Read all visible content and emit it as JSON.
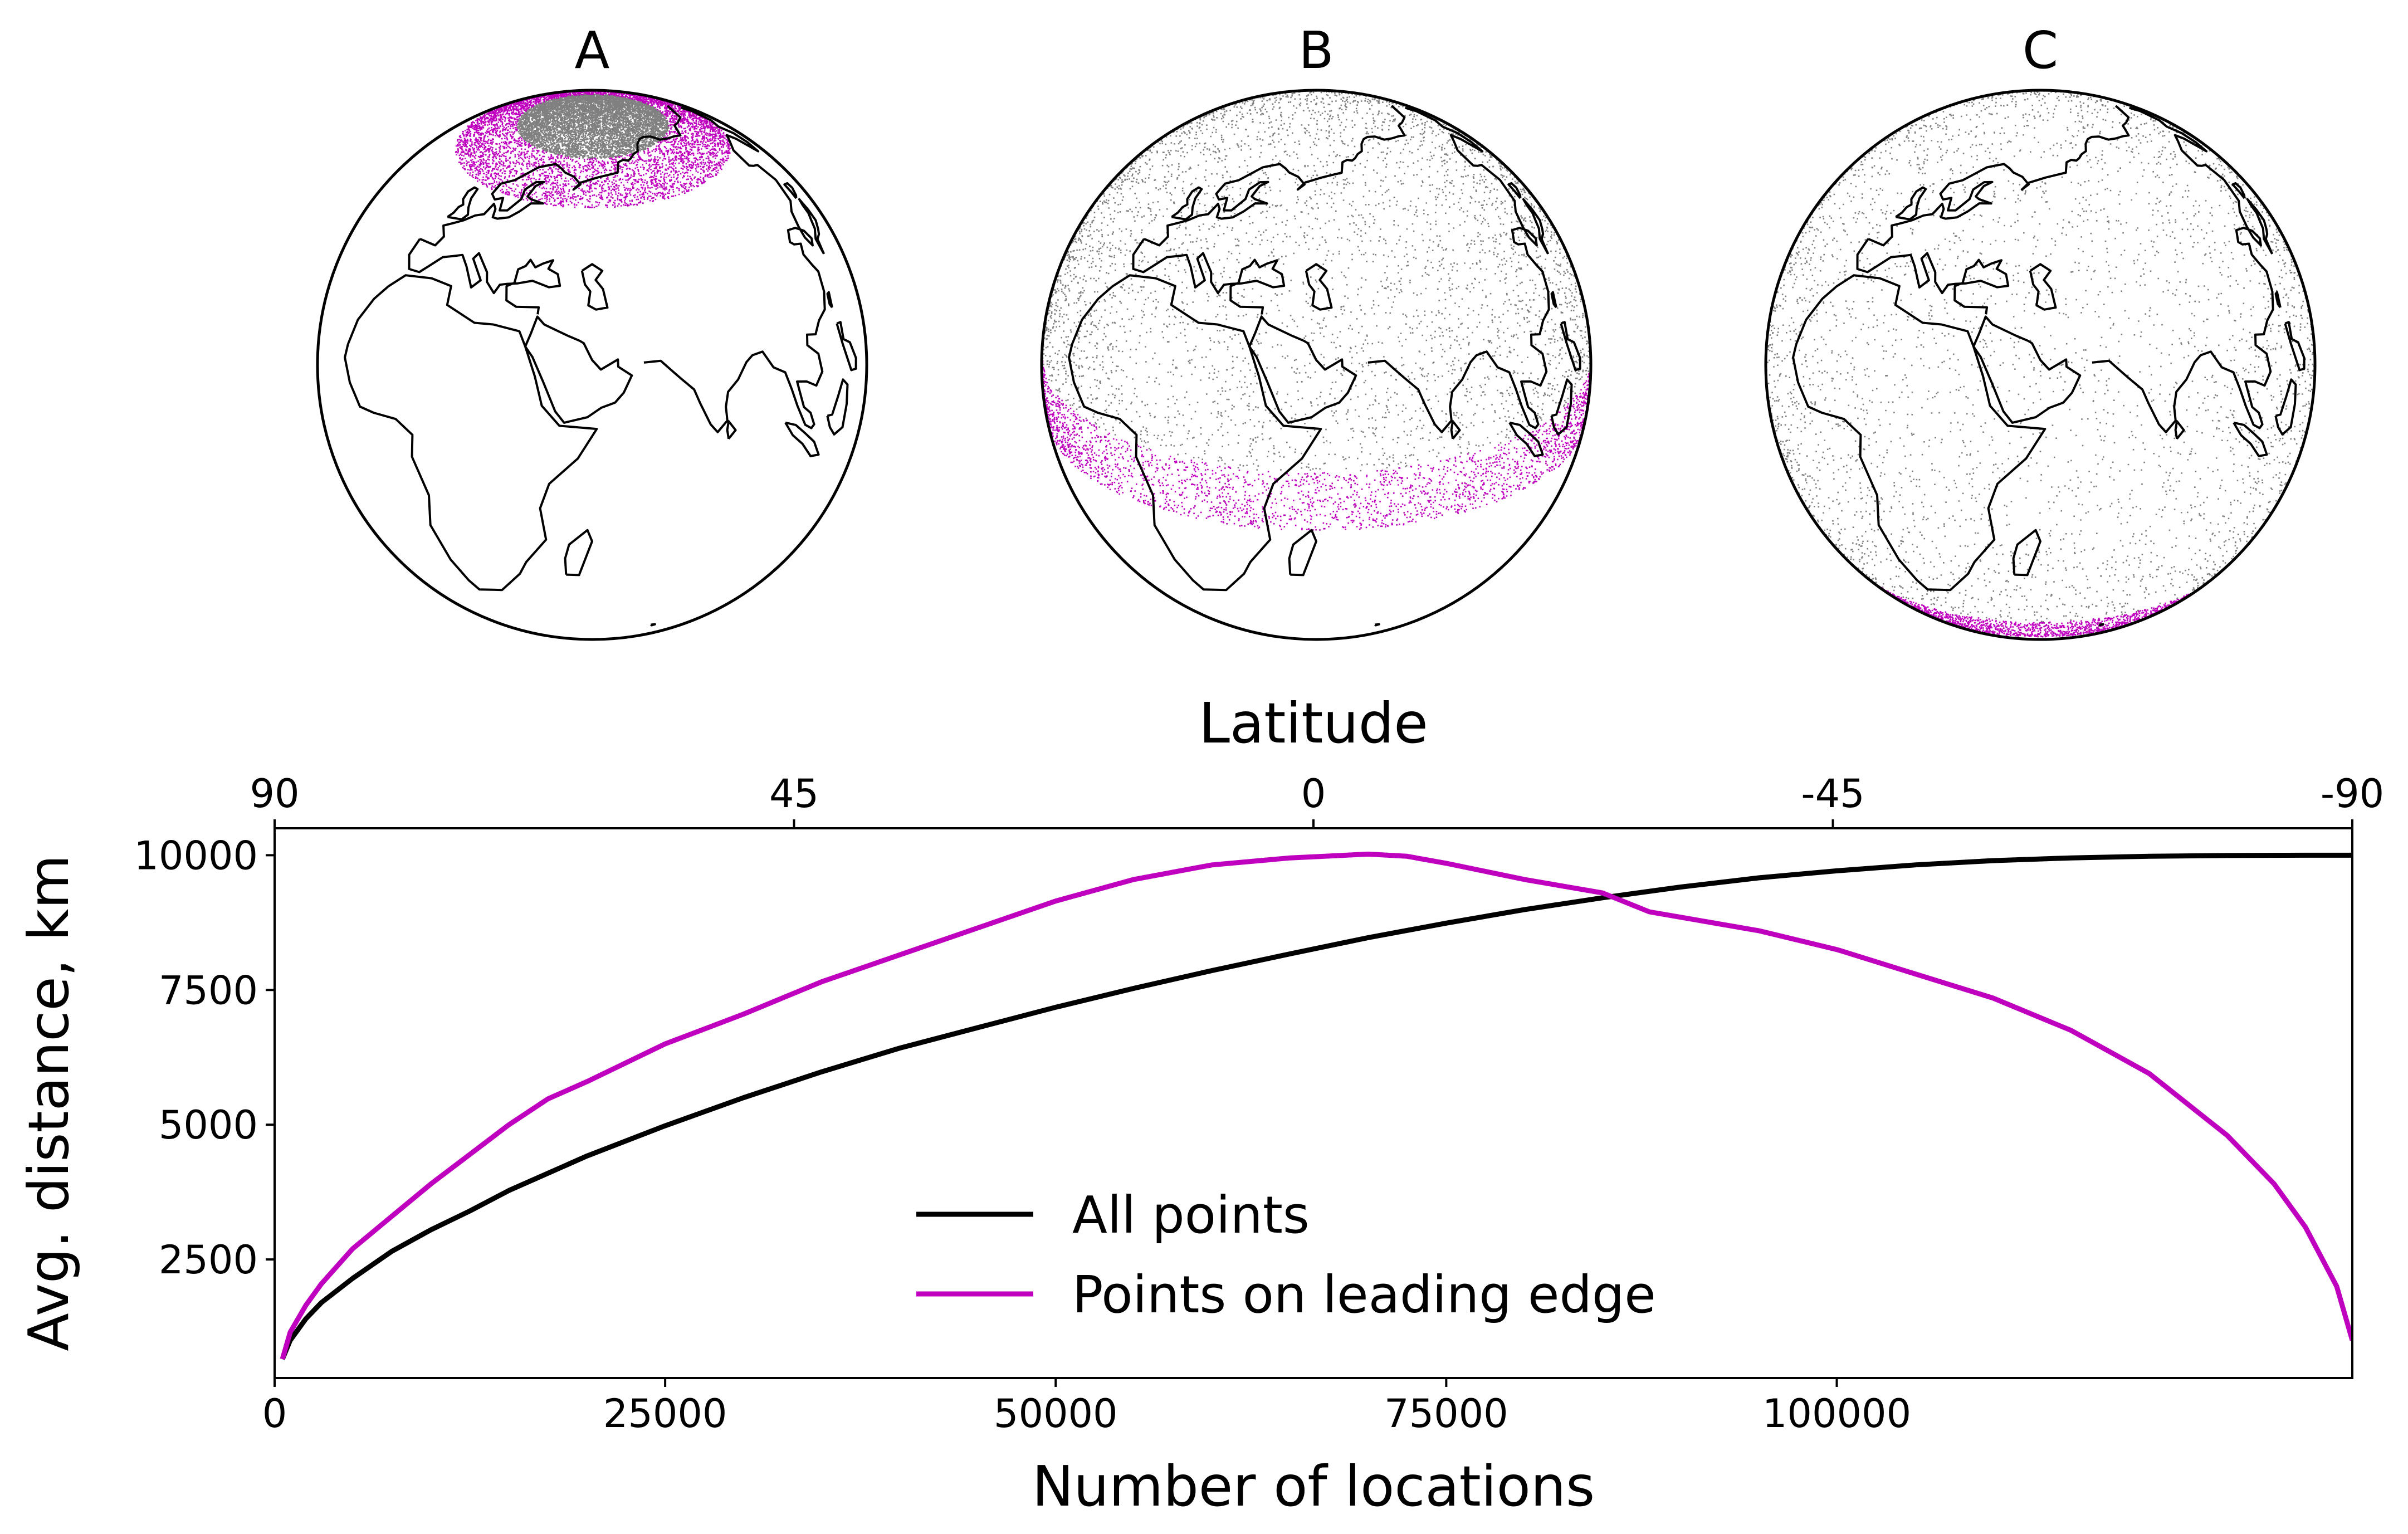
{
  "panels": [
    {
      "label": "A",
      "band_center_lat": 67,
      "band_halfwidth": 7,
      "fill_from_lat": 74
    },
    {
      "label": "B",
      "band_center_lat": -5,
      "band_halfwidth": 7,
      "fill_from_lat": 2
    },
    {
      "label": "C",
      "band_center_lat": -50,
      "band_halfwidth": 6,
      "fill_from_lat": -44
    }
  ],
  "globe_style": {
    "filled_points_color": "#808080",
    "leading_edge_color": "#bf00bf",
    "coastline_color": "#000000",
    "center_lon": 50,
    "center_lat": 25
  },
  "chart_data": {
    "type": "line",
    "xlabel": "Number of locations",
    "ylabel": "Avg. distance, km",
    "top_xlabel": "Latitude",
    "xlim": [
      0,
      133000
    ],
    "ylim": [
      300,
      10500
    ],
    "xticks": [
      0,
      25000,
      50000,
      75000,
      100000
    ],
    "yticks": [
      2500,
      5000,
      7500,
      10000
    ],
    "top_xticks": [
      90,
      45,
      0,
      -45,
      -90
    ],
    "legend_position": "lower-center",
    "series": [
      {
        "name": "All points",
        "color": "#000000",
        "x": [
          500,
          1000,
          2000,
          3000,
          5000,
          7500,
          10000,
          12500,
          15000,
          20000,
          25000,
          30000,
          35000,
          40000,
          45000,
          50000,
          55000,
          60000,
          65000,
          70000,
          75000,
          80000,
          85000,
          90000,
          95000,
          100000,
          105000,
          110000,
          115000,
          120000,
          125000,
          130000,
          133000
        ],
        "y": [
          650,
          1000,
          1400,
          1700,
          2150,
          2650,
          3050,
          3400,
          3780,
          4420,
          4980,
          5500,
          5980,
          6420,
          6800,
          7180,
          7530,
          7860,
          8170,
          8470,
          8740,
          8990,
          9210,
          9410,
          9580,
          9710,
          9820,
          9900,
          9950,
          9980,
          9995,
          10000,
          10000
        ]
      },
      {
        "name": "Points on leading edge",
        "color": "#bf00bf",
        "x": [
          500,
          1000,
          2000,
          3000,
          5000,
          7500,
          10000,
          12500,
          15000,
          17500,
          20000,
          25000,
          30000,
          35000,
          40000,
          45000,
          50000,
          55000,
          60000,
          65000,
          70000,
          72500,
          75000,
          80000,
          85000,
          88000,
          90000,
          95000,
          100000,
          105000,
          110000,
          115000,
          120000,
          125000,
          128000,
          130000,
          132000,
          133000
        ],
        "y": [
          650,
          1150,
          1650,
          2050,
          2700,
          3300,
          3900,
          4450,
          5000,
          5480,
          5800,
          6500,
          7050,
          7650,
          8150,
          8650,
          9150,
          9550,
          9820,
          9950,
          10020,
          9980,
          9850,
          9550,
          9300,
          8950,
          8850,
          8600,
          8250,
          7800,
          7350,
          6750,
          5950,
          4800,
          3900,
          3100,
          2000,
          1000
        ]
      }
    ]
  }
}
